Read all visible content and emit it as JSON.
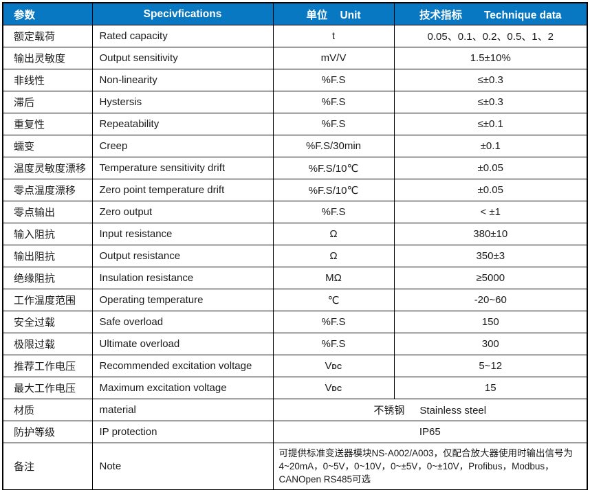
{
  "colors": {
    "header_bg": "#0878c2",
    "header_text": "#ffffff",
    "border": "#000000",
    "body_text": "#1a1a1a"
  },
  "table": {
    "header": {
      "param_zh": "参数",
      "spec_en": "Specivfications",
      "unit_zh": "单位",
      "unit_en": "Unit",
      "data_zh": "技术指标",
      "data_en": "Technique data"
    },
    "rows": [
      {
        "param": "额定载荷",
        "spec": "Rated capacity",
        "unit": "t",
        "value": "0.05、0.1、0.2、0.5、1、2"
      },
      {
        "param": "输出灵敏度",
        "spec": "Output sensitivity",
        "unit": "mV/V",
        "value": "1.5±10%"
      },
      {
        "param": "非线性",
        "spec": "Non-linearity",
        "unit": "%F.S",
        "value": "≤±0.3"
      },
      {
        "param": "滞后",
        "spec": "Hystersis",
        "unit": "%F.S",
        "value": "≤±0.3"
      },
      {
        "param": "重复性",
        "spec": "Repeatability",
        "unit": "%F.S",
        "value": "≤±0.1"
      },
      {
        "param": "蠕变",
        "spec": "Creep",
        "unit": "%F.S/30min",
        "value": "±0.1"
      },
      {
        "param": "温度灵敏度漂移",
        "spec": "Temperature sensitivity drift",
        "unit": "%F.S/10℃",
        "value": "±0.05"
      },
      {
        "param": "零点温度漂移",
        "spec": "Zero point temperature drift",
        "unit": "%F.S/10℃",
        "value": "±0.05"
      },
      {
        "param": "零点输出",
        "spec": "Zero output",
        "unit": "%F.S",
        "value": "< ±1"
      },
      {
        "param": "输入阻抗",
        "spec": "Input resistance",
        "unit": "Ω",
        "value": "380±10"
      },
      {
        "param": "输出阻抗",
        "spec": "Output resistance",
        "unit": "Ω",
        "value": "350±3"
      },
      {
        "param": "绝缘阻抗",
        "spec": "Insulation resistance",
        "unit": "MΩ",
        "value": "≥5000"
      },
      {
        "param": "工作温度范围",
        "spec": "Operating temperature",
        "unit": "℃",
        "value": "-20~60"
      },
      {
        "param": "安全过载",
        "spec": "Safe overload",
        "unit": "%F.S",
        "value": "150"
      },
      {
        "param": "极限过载",
        "spec": "Ultimate overload",
        "unit": "%F.S",
        "value": "300"
      },
      {
        "param": "推荐工作电压",
        "spec": "Recommended excitation voltage",
        "unit": "V",
        "unit_sub": "DC",
        "value": "5~12"
      },
      {
        "param": "最大工作电压",
        "spec": "Maximum excitation voltage",
        "unit": "V",
        "unit_sub": "DC",
        "value": "15"
      },
      {
        "param": "材质",
        "spec": "material",
        "value_zh": "不锈钢",
        "value_en": "Stainless steel"
      },
      {
        "param": "防护等级",
        "spec": "IP protection",
        "value": "IP65"
      },
      {
        "param": "备注",
        "spec": "Note",
        "value": "可提供标准变送器模块NS-A002/A003，仅配合放大器使用时输出信号为4~20mA，0~5V，0~10V，0~±5V，0~±10V，Profibus，Modbus，CANOpen RS485可选"
      }
    ]
  }
}
